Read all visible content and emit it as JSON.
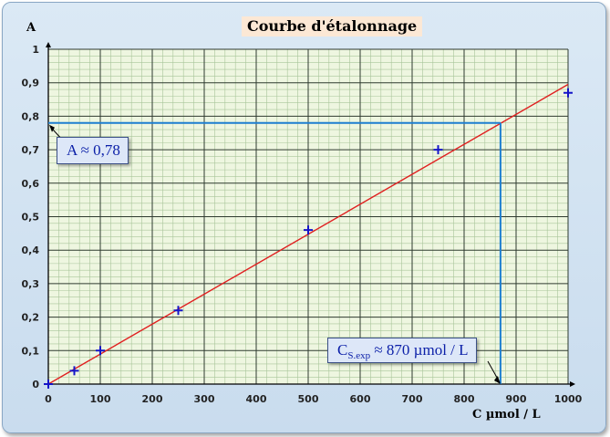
{
  "chart_data": {
    "type": "scatter",
    "title": "Courbe d'étalonnage",
    "xlabel": "C µmol / L",
    "ylabel": "A",
    "xlim": [
      0,
      1000
    ],
    "ylim": [
      0,
      1
    ],
    "x_ticks": [
      0,
      100,
      200,
      300,
      400,
      500,
      600,
      700,
      800,
      900,
      1000
    ],
    "y_ticks": [
      "0",
      "0,1",
      "0,2",
      "0,3",
      "0,4",
      "0,5",
      "0,6",
      "0,7",
      "0,8",
      "0,9",
      "1"
    ],
    "grid": true,
    "points": [
      {
        "x": 0,
        "y": 0
      },
      {
        "x": 50,
        "y": 0.04
      },
      {
        "x": 100,
        "y": 0.1
      },
      {
        "x": 250,
        "y": 0.22
      },
      {
        "x": 500,
        "y": 0.46
      },
      {
        "x": 750,
        "y": 0.7
      },
      {
        "x": 1000,
        "y": 0.87
      }
    ],
    "fit_line": {
      "x": [
        0,
        1000
      ],
      "y": [
        0,
        0.895
      ]
    },
    "read_point": {
      "x": 870,
      "y": 0.78
    },
    "annotation_a": "A ≈ 0,78",
    "annotation_c_main": "C",
    "annotation_c_sub": "S.exp",
    "annotation_c_rest": " ≈ 870 µmol / L",
    "colors": {
      "fit_line": "#e02020",
      "markers": "#1515c8",
      "readout": "#1e7fd0",
      "grid_major": "#2f3b2f",
      "grid_minor": "#a9c59a",
      "plot_bg": "#eef6e0"
    }
  }
}
